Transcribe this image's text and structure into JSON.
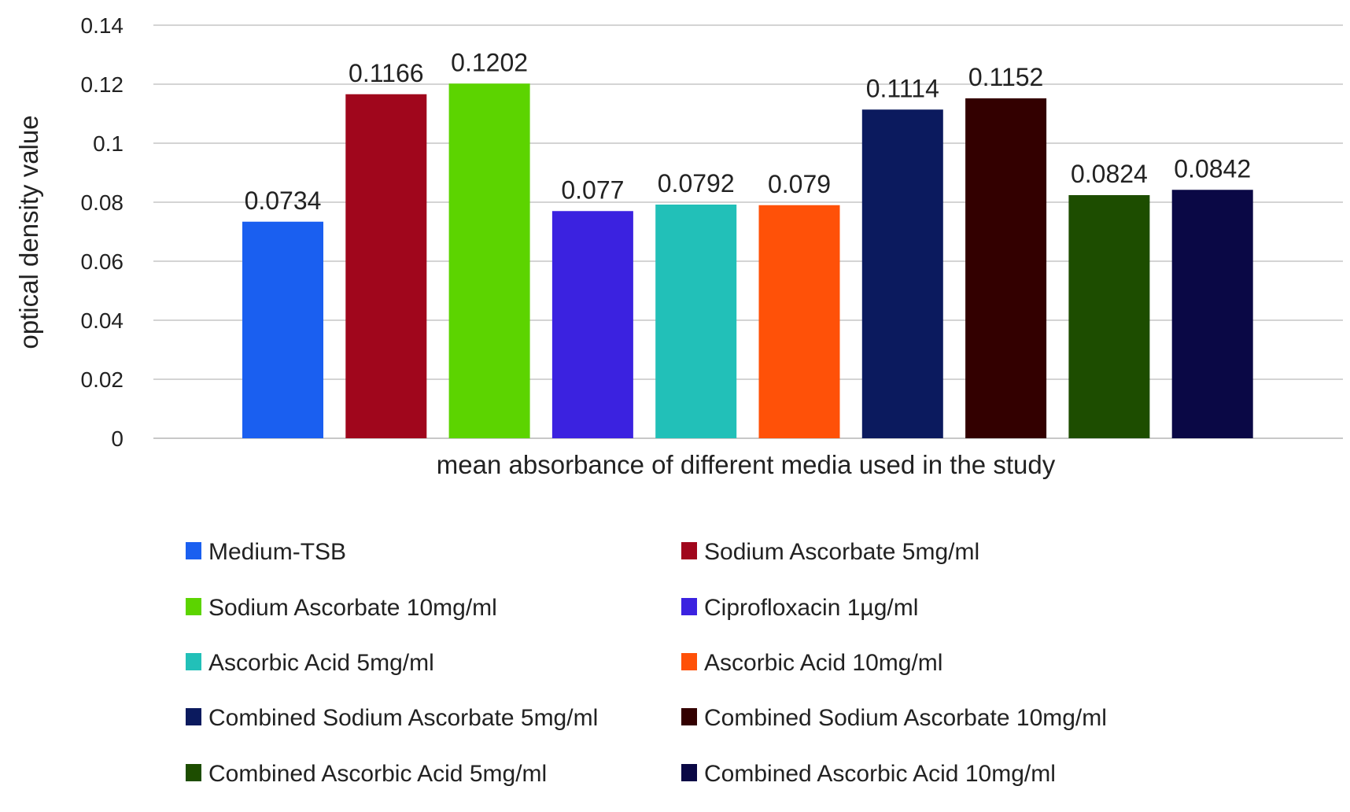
{
  "chart_data": {
    "type": "bar",
    "title": "",
    "xlabel": "mean absorbance of different media used in the study",
    "ylabel": "optical density value",
    "ylim": [
      0,
      0.14
    ],
    "yticks": [
      "0",
      "0.02",
      "0.04",
      "0.06",
      "0.08",
      "0.1",
      "0.12",
      "0.14"
    ],
    "grid": true,
    "legend_position": "bottom",
    "categories": [
      "Medium-TSB",
      "Sodium Ascorbate 5mg/ml",
      "Sodium Ascorbate 10mg/ml",
      "Ciprofloxacin 1µg/ml",
      "Ascorbic Acid 5mg/ml",
      "Ascorbic Acid 10mg/ml",
      "Combined Sodium Ascorbate 5mg/ml",
      "Combined Sodium Ascorbate 10mg/ml",
      "Combined Ascorbic Acid 5mg/ml",
      "Combined Ascorbic Acid 10mg/ml"
    ],
    "values": [
      0.0734,
      0.1166,
      0.1202,
      0.077,
      0.0792,
      0.079,
      0.1114,
      0.1152,
      0.0824,
      0.0842
    ],
    "value_labels": [
      "0.0734",
      "0.1166",
      "0.1202",
      "0.077",
      "0.0792",
      "0.079",
      "0.1114",
      "0.1152",
      "0.0824",
      "0.0842"
    ],
    "colors": [
      "#1a5ff0",
      "#a0061c",
      "#5cd400",
      "#3b22e0",
      "#22c0b8",
      "#ff5108",
      "#0b1a5e",
      "#330000",
      "#1d4d00",
      "#0a0845"
    ]
  }
}
